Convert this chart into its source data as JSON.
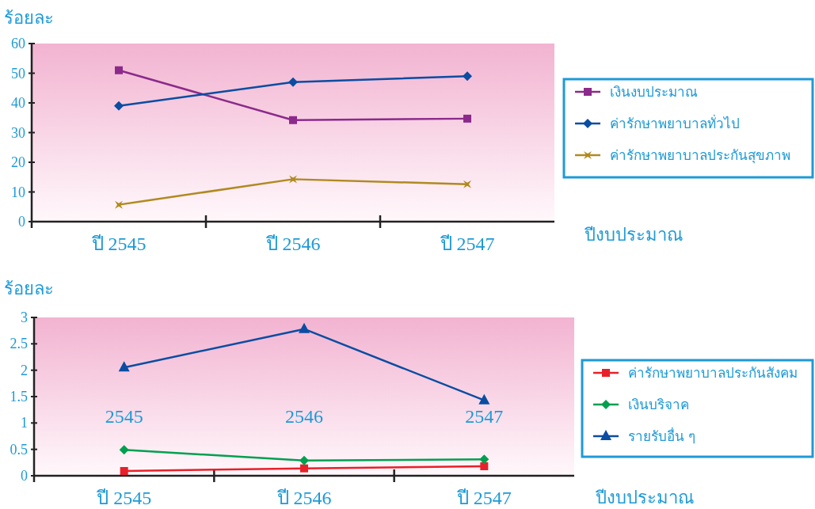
{
  "chart_data": [
    {
      "type": "line",
      "ylabel": "ร้อยละ",
      "xlabel": "ปีงบประมาณ",
      "categories": [
        "ปี 2545",
        "ปี 2546",
        "ปี 2547"
      ],
      "ylim": [
        0,
        60
      ],
      "yticks": [
        0,
        10,
        20,
        30,
        40,
        50,
        60
      ],
      "legend": "right",
      "grid": false,
      "series": [
        {
          "name": "เงินงบประมาณ",
          "color": "#8b2a8b",
          "marker": "square",
          "values": [
            51,
            34.2,
            34.7
          ]
        },
        {
          "name": "ค่ารักษาพยาบาลทั่วไป",
          "color": "#0a4da2",
          "marker": "diamond",
          "values": [
            39,
            47,
            49
          ]
        },
        {
          "name": "ค่ารักษาพยาบาลประกันสุขภาพ",
          "color": "#b08a20",
          "marker": "star",
          "values": [
            5.7,
            14.3,
            12.6
          ]
        }
      ]
    },
    {
      "type": "line",
      "ylabel": "ร้อยละ",
      "xlabel": "ปีงบประมาณ",
      "categories": [
        "ปี 2545",
        "ปี 2546",
        "ปี 2547"
      ],
      "ylim": [
        0,
        3
      ],
      "yticks": [
        0,
        0.5,
        1,
        1.5,
        2,
        2.5,
        3
      ],
      "legend": "right",
      "grid": false,
      "annotations": [
        "2545",
        "2546",
        "2547"
      ],
      "series": [
        {
          "name": "ค่ารักษาพยาบาลประกันสังคม",
          "color": "#e8202a",
          "marker": "square",
          "values": [
            0.09,
            0.14,
            0.18
          ]
        },
        {
          "name": "เงินบริจาค",
          "color": "#00a050",
          "marker": "diamond",
          "values": [
            0.49,
            0.29,
            0.31
          ]
        },
        {
          "name": "รายรับอื่น ๆ",
          "color": "#0a4da2",
          "marker": "triangle",
          "values": [
            2.05,
            2.78,
            1.43
          ]
        }
      ]
    }
  ]
}
